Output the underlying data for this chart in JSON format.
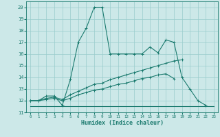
{
  "xlabel": "Humidex (Indice chaleur)",
  "xlim": [
    -0.5,
    23.5
  ],
  "ylim": [
    11,
    20.5
  ],
  "yticks": [
    11,
    12,
    13,
    14,
    15,
    16,
    17,
    18,
    19,
    20
  ],
  "xticks": [
    0,
    1,
    2,
    3,
    4,
    5,
    6,
    7,
    8,
    9,
    10,
    11,
    12,
    13,
    14,
    15,
    16,
    17,
    18,
    19,
    20,
    21,
    22,
    23
  ],
  "bg_color": "#cce8e8",
  "grid_color": "#99cccc",
  "line_color": "#1a7a6e",
  "lines": [
    {
      "x": [
        0,
        1,
        2,
        3,
        4,
        5,
        6,
        7,
        8,
        9,
        10,
        11,
        12,
        13,
        14,
        15,
        16,
        17,
        18,
        19,
        20,
        21,
        22
      ],
      "y": [
        12,
        12,
        12.4,
        12.4,
        11.6,
        13.8,
        17,
        18.2,
        20,
        20,
        16,
        16,
        16,
        16,
        16,
        16.6,
        16.1,
        17.2,
        17,
        14,
        13,
        12,
        11.6
      ]
    },
    {
      "x": [
        0,
        1,
        2,
        3,
        4,
        5,
        6,
        7,
        8,
        9,
        10,
        11,
        12,
        13,
        14,
        15,
        16,
        17,
        18,
        19
      ],
      "y": [
        12,
        12,
        12.2,
        12.3,
        12.1,
        12.5,
        12.8,
        13.1,
        13.4,
        13.5,
        13.8,
        14.0,
        14.2,
        14.4,
        14.6,
        14.8,
        15.0,
        15.2,
        15.4,
        15.5
      ]
    },
    {
      "x": [
        0,
        1,
        2,
        3,
        4,
        5,
        6,
        7,
        8,
        9,
        10,
        11,
        12,
        13,
        14,
        15,
        16,
        17,
        18
      ],
      "y": [
        12,
        12,
        12.1,
        12.2,
        12.0,
        12.2,
        12.5,
        12.7,
        12.9,
        13.0,
        13.2,
        13.4,
        13.5,
        13.7,
        13.9,
        14.0,
        14.2,
        14.3,
        13.9
      ]
    },
    {
      "x": [
        0,
        1,
        2,
        3,
        4,
        5,
        6,
        7,
        8,
        9,
        10,
        11,
        12,
        13,
        14,
        15,
        16,
        17,
        18,
        19,
        20,
        21,
        22,
        23
      ],
      "y": [
        11.5,
        11.5,
        11.5,
        11.5,
        11.5,
        11.5,
        11.5,
        11.5,
        11.5,
        11.5,
        11.5,
        11.5,
        11.5,
        11.5,
        11.5,
        11.5,
        11.5,
        11.5,
        11.5,
        11.5,
        11.5,
        11.5,
        11.5,
        11.5
      ]
    }
  ]
}
